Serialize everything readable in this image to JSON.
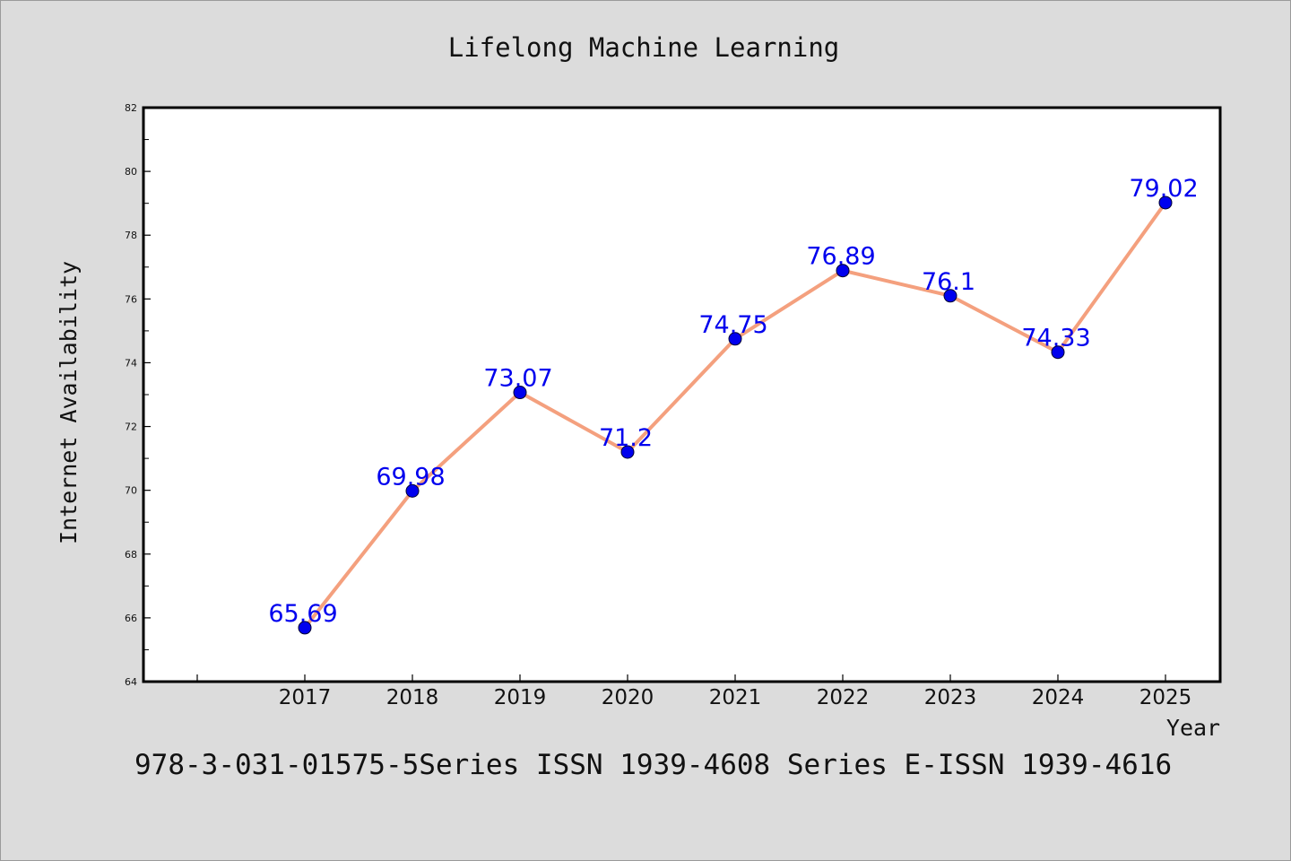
{
  "chart_data": {
    "type": "line",
    "title": "Lifelong Machine Learning",
    "xlabel": "Year",
    "ylabel": "Internet Availability",
    "categories": [
      "2017",
      "2018",
      "2019",
      "2020",
      "2021",
      "2022",
      "2023",
      "2024",
      "2025"
    ],
    "series": [
      {
        "values": [
          65.69,
          69.98,
          73.07,
          71.2,
          74.75,
          76.89,
          76.1,
          74.33,
          79.02
        ]
      }
    ],
    "data_labels": [
      "65.69",
      "69.98",
      "73.07",
      "71.2",
      "74.75",
      "76.89",
      "76.1",
      "74.33",
      "79.02"
    ],
    "ylim": [
      64,
      82
    ],
    "yticks": [
      "64",
      "66",
      "68",
      "70",
      "72",
      "74",
      "76",
      "78",
      "80",
      "82"
    ],
    "grid": false,
    "legend": "none",
    "line_color": "#f4a07e",
    "marker_color": "#0000ee",
    "label_color": "#0000ee"
  },
  "footer_text": "978-3-031-01575-5Series ISSN 1939-4608 Series E-ISSN 1939-4616"
}
